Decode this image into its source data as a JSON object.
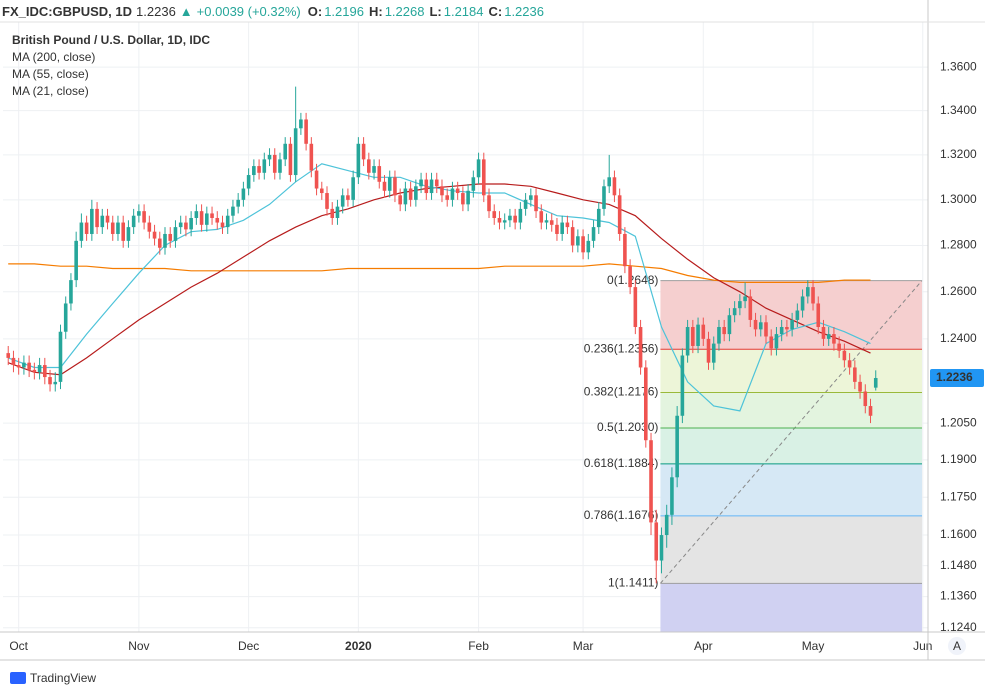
{
  "header": {
    "symbol": "FX_IDC:GBPUSD, 1D",
    "close": 1.2236,
    "change": "+0.0039 (+0.32%)",
    "fields": [
      {
        "key": "O:",
        "value": 1.2196
      },
      {
        "key": "H:",
        "value": 1.2268
      },
      {
        "key": "L:",
        "value": 1.2184
      },
      {
        "key": "C:",
        "value": 1.2236
      }
    ]
  },
  "chart_data": {
    "type": "candlestick",
    "title": "British Pound / U.S. Dollar, 1D, IDC",
    "yscale": "log",
    "grid": true,
    "up_color": "#26a69a",
    "down_color": "#ef5350",
    "ylim": [
      1.1224,
      1.381
    ],
    "xlim": [
      -1,
      176
    ],
    "yticks": [
      {
        "value": 1.36,
        "label": "1.3600"
      },
      {
        "value": 1.34,
        "label": "1.3400"
      },
      {
        "value": 1.32,
        "label": "1.3200"
      },
      {
        "value": 1.3,
        "label": "1.3000"
      },
      {
        "value": 1.28,
        "label": "1.2800"
      },
      {
        "value": 1.26,
        "label": "1.2600"
      },
      {
        "value": 1.24,
        "label": "1.2400"
      },
      {
        "value": 1.205,
        "label": "1.2050"
      },
      {
        "value": 1.19,
        "label": "1.1900"
      },
      {
        "value": 1.175,
        "label": "1.1750"
      },
      {
        "value": 1.16,
        "label": "1.1600"
      },
      {
        "value": 1.148,
        "label": "1.1480"
      },
      {
        "value": 1.136,
        "label": "1.1360"
      },
      {
        "value": 1.124,
        "label": "1.1240"
      }
    ],
    "xticks": [
      {
        "value": 2,
        "label": "Oct"
      },
      {
        "value": 25,
        "label": "Nov"
      },
      {
        "value": 46,
        "label": "Dec"
      },
      {
        "value": 67,
        "label": "2020"
      },
      {
        "value": 90,
        "label": "Feb"
      },
      {
        "value": 110,
        "label": "Mar"
      },
      {
        "value": 133,
        "label": "Apr"
      },
      {
        "value": 154,
        "label": "May"
      },
      {
        "value": 175,
        "label": "Jun"
      }
    ],
    "last_price": 1.2236,
    "last_price_color": "#2196f3",
    "candles": [
      [
        1.234,
        1.237,
        1.229,
        1.232
      ],
      [
        1.232,
        1.235,
        1.226,
        1.229
      ],
      [
        1.229,
        1.232,
        1.225,
        1.228
      ],
      [
        1.228,
        1.233,
        1.225,
        1.23
      ],
      [
        1.23,
        1.233,
        1.224,
        1.227
      ],
      [
        1.227,
        1.23,
        1.223,
        1.226
      ],
      [
        1.226,
        1.232,
        1.223,
        1.229
      ],
      [
        1.229,
        1.232,
        1.221,
        1.224
      ],
      [
        1.224,
        1.227,
        1.218,
        1.221
      ],
      [
        1.221,
        1.226,
        1.218,
        1.222
      ],
      [
        1.222,
        1.246,
        1.219,
        1.243
      ],
      [
        1.243,
        1.258,
        1.24,
        1.255
      ],
      [
        1.255,
        1.268,
        1.252,
        1.265
      ],
      [
        1.265,
        1.286,
        1.262,
        1.282
      ],
      [
        1.282,
        1.294,
        1.279,
        1.29
      ],
      [
        1.29,
        1.293,
        1.282,
        1.285
      ],
      [
        1.285,
        1.3,
        1.282,
        1.296
      ],
      [
        1.296,
        1.299,
        1.285,
        1.288
      ],
      [
        1.288,
        1.296,
        1.285,
        1.293
      ],
      [
        1.293,
        1.296,
        1.287,
        1.29
      ],
      [
        1.29,
        1.293,
        1.282,
        1.285
      ],
      [
        1.285,
        1.293,
        1.282,
        1.29
      ],
      [
        1.29,
        1.293,
        1.279,
        1.282
      ],
      [
        1.282,
        1.291,
        1.279,
        1.288
      ],
      [
        1.288,
        1.296,
        1.285,
        1.293
      ],
      [
        1.293,
        1.298,
        1.29,
        1.295
      ],
      [
        1.295,
        1.298,
        1.287,
        1.29
      ],
      [
        1.29,
        1.293,
        1.283,
        1.286
      ],
      [
        1.286,
        1.289,
        1.28,
        1.283
      ],
      [
        1.283,
        1.286,
        1.276,
        1.279
      ],
      [
        1.279,
        1.288,
        1.276,
        1.285
      ],
      [
        1.285,
        1.288,
        1.279,
        1.282
      ],
      [
        1.282,
        1.291,
        1.279,
        1.288
      ],
      [
        1.288,
        1.293,
        1.285,
        1.29
      ],
      [
        1.29,
        1.293,
        1.284,
        1.287
      ],
      [
        1.287,
        1.295,
        1.284,
        1.292
      ],
      [
        1.292,
        1.298,
        1.289,
        1.295
      ],
      [
        1.295,
        1.298,
        1.286,
        1.289
      ],
      [
        1.289,
        1.297,
        1.286,
        1.294
      ],
      [
        1.294,
        1.297,
        1.289,
        1.292
      ],
      [
        1.292,
        1.295,
        1.287,
        1.29
      ],
      [
        1.29,
        1.293,
        1.285,
        1.288
      ],
      [
        1.288,
        1.296,
        1.285,
        1.293
      ],
      [
        1.293,
        1.3,
        1.29,
        1.297
      ],
      [
        1.297,
        1.303,
        1.294,
        1.3
      ],
      [
        1.3,
        1.308,
        1.297,
        1.305
      ],
      [
        1.305,
        1.314,
        1.302,
        1.311
      ],
      [
        1.311,
        1.318,
        1.308,
        1.315
      ],
      [
        1.315,
        1.318,
        1.309,
        1.312
      ],
      [
        1.312,
        1.321,
        1.309,
        1.318
      ],
      [
        1.318,
        1.323,
        1.315,
        1.32
      ],
      [
        1.32,
        1.323,
        1.309,
        1.312
      ],
      [
        1.312,
        1.321,
        1.309,
        1.318
      ],
      [
        1.318,
        1.328,
        1.315,
        1.325
      ],
      [
        1.325,
        1.328,
        1.308,
        1.311
      ],
      [
        1.311,
        1.351,
        1.308,
        1.332
      ],
      [
        1.332,
        1.339,
        1.329,
        1.336
      ],
      [
        1.336,
        1.339,
        1.322,
        1.325
      ],
      [
        1.325,
        1.328,
        1.31,
        1.313
      ],
      [
        1.313,
        1.316,
        1.302,
        1.305
      ],
      [
        1.305,
        1.308,
        1.3,
        1.303
      ],
      [
        1.303,
        1.306,
        1.293,
        1.296
      ],
      [
        1.296,
        1.299,
        1.289,
        1.292
      ],
      [
        1.292,
        1.3,
        1.289,
        1.297
      ],
      [
        1.297,
        1.305,
        1.294,
        1.302
      ],
      [
        1.302,
        1.305,
        1.297,
        1.3
      ],
      [
        1.3,
        1.313,
        1.297,
        1.31
      ],
      [
        1.31,
        1.328,
        1.307,
        1.325
      ],
      [
        1.325,
        1.328,
        1.315,
        1.318
      ],
      [
        1.318,
        1.321,
        1.309,
        1.312
      ],
      [
        1.312,
        1.318,
        1.309,
        1.315
      ],
      [
        1.315,
        1.318,
        1.305,
        1.308
      ],
      [
        1.308,
        1.311,
        1.301,
        1.304
      ],
      [
        1.304,
        1.313,
        1.301,
        1.31
      ],
      [
        1.31,
        1.313,
        1.299,
        1.302
      ],
      [
        1.302,
        1.305,
        1.295,
        1.298
      ],
      [
        1.298,
        1.308,
        1.295,
        1.305
      ],
      [
        1.305,
        1.308,
        1.297,
        1.3
      ],
      [
        1.3,
        1.309,
        1.297,
        1.306
      ],
      [
        1.306,
        1.312,
        1.303,
        1.309
      ],
      [
        1.309,
        1.312,
        1.3,
        1.303
      ],
      [
        1.303,
        1.312,
        1.3,
        1.309
      ],
      [
        1.309,
        1.312,
        1.303,
        1.306
      ],
      [
        1.306,
        1.309,
        1.299,
        1.302
      ],
      [
        1.302,
        1.305,
        1.297,
        1.3
      ],
      [
        1.3,
        1.308,
        1.297,
        1.305
      ],
      [
        1.305,
        1.308,
        1.3,
        1.303
      ],
      [
        1.303,
        1.306,
        1.295,
        1.298
      ],
      [
        1.298,
        1.307,
        1.295,
        1.304
      ],
      [
        1.304,
        1.313,
        1.301,
        1.31
      ],
      [
        1.31,
        1.321,
        1.307,
        1.318
      ],
      [
        1.318,
        1.321,
        1.299,
        1.302
      ],
      [
        1.302,
        1.305,
        1.292,
        1.295
      ],
      [
        1.295,
        1.298,
        1.289,
        1.292
      ],
      [
        1.292,
        1.295,
        1.287,
        1.29
      ],
      [
        1.29,
        1.294,
        1.287,
        1.291
      ],
      [
        1.291,
        1.296,
        1.288,
        1.293
      ],
      [
        1.293,
        1.296,
        1.287,
        1.29
      ],
      [
        1.29,
        1.299,
        1.287,
        1.296
      ],
      [
        1.296,
        1.303,
        1.293,
        1.3
      ],
      [
        1.3,
        1.305,
        1.297,
        1.302
      ],
      [
        1.302,
        1.305,
        1.292,
        1.295
      ],
      [
        1.295,
        1.298,
        1.287,
        1.29
      ],
      [
        1.29,
        1.294,
        1.287,
        1.291
      ],
      [
        1.291,
        1.294,
        1.286,
        1.289
      ],
      [
        1.289,
        1.292,
        1.282,
        1.285
      ],
      [
        1.285,
        1.293,
        1.282,
        1.29
      ],
      [
        1.29,
        1.293,
        1.285,
        1.288
      ],
      [
        1.288,
        1.291,
        1.277,
        1.28
      ],
      [
        1.28,
        1.287,
        1.277,
        1.284
      ],
      [
        1.284,
        1.287,
        1.274,
        1.277
      ],
      [
        1.277,
        1.285,
        1.274,
        1.282
      ],
      [
        1.282,
        1.291,
        1.279,
        1.288
      ],
      [
        1.288,
        1.299,
        1.285,
        1.296
      ],
      [
        1.296,
        1.309,
        1.293,
        1.306
      ],
      [
        1.306,
        1.32,
        1.303,
        1.31
      ],
      [
        1.31,
        1.313,
        1.299,
        1.302
      ],
      [
        1.302,
        1.305,
        1.282,
        1.285
      ],
      [
        1.285,
        1.288,
        1.268,
        1.271
      ],
      [
        1.271,
        1.274,
        1.259,
        1.262
      ],
      [
        1.262,
        1.265,
        1.242,
        1.245
      ],
      [
        1.245,
        1.248,
        1.225,
        1.228
      ],
      [
        1.228,
        1.231,
        1.195,
        1.198
      ],
      [
        1.198,
        1.201,
        1.16,
        1.165
      ],
      [
        1.165,
        1.17,
        1.1411,
        1.15
      ],
      [
        1.15,
        1.163,
        1.145,
        1.16
      ],
      [
        1.16,
        1.172,
        1.155,
        1.168
      ],
      [
        1.168,
        1.187,
        1.164,
        1.183
      ],
      [
        1.183,
        1.212,
        1.179,
        1.208
      ],
      [
        1.208,
        1.236,
        1.205,
        1.233
      ],
      [
        1.233,
        1.248,
        1.23,
        1.245
      ],
      [
        1.245,
        1.248,
        1.234,
        1.237
      ],
      [
        1.237,
        1.249,
        1.234,
        1.246
      ],
      [
        1.246,
        1.249,
        1.237,
        1.24
      ],
      [
        1.24,
        1.243,
        1.227,
        1.23
      ],
      [
        1.23,
        1.241,
        1.227,
        1.238
      ],
      [
        1.238,
        1.248,
        1.235,
        1.245
      ],
      [
        1.245,
        1.248,
        1.239,
        1.242
      ],
      [
        1.242,
        1.253,
        1.239,
        1.25
      ],
      [
        1.25,
        1.256,
        1.247,
        1.253
      ],
      [
        1.253,
        1.259,
        1.25,
        1.256
      ],
      [
        1.256,
        1.264,
        1.253,
        1.258
      ],
      [
        1.258,
        1.261,
        1.245,
        1.248
      ],
      [
        1.248,
        1.251,
        1.241,
        1.244
      ],
      [
        1.244,
        1.25,
        1.241,
        1.247
      ],
      [
        1.247,
        1.25,
        1.238,
        1.241
      ],
      [
        1.241,
        1.244,
        1.233,
        1.236
      ],
      [
        1.236,
        1.245,
        1.233,
        1.242
      ],
      [
        1.242,
        1.248,
        1.239,
        1.245
      ],
      [
        1.245,
        1.248,
        1.241,
        1.244
      ],
      [
        1.244,
        1.251,
        1.241,
        1.248
      ],
      [
        1.248,
        1.255,
        1.245,
        1.252
      ],
      [
        1.252,
        1.261,
        1.249,
        1.258
      ],
      [
        1.258,
        1.265,
        1.255,
        1.262
      ],
      [
        1.262,
        1.265,
        1.252,
        1.255
      ],
      [
        1.255,
        1.258,
        1.242,
        1.245
      ],
      [
        1.245,
        1.248,
        1.237,
        1.24
      ],
      [
        1.24,
        1.245,
        1.237,
        1.242
      ],
      [
        1.242,
        1.245,
        1.235,
        1.238
      ],
      [
        1.238,
        1.241,
        1.232,
        1.235
      ],
      [
        1.235,
        1.238,
        1.228,
        1.231
      ],
      [
        1.231,
        1.234,
        1.225,
        1.228
      ],
      [
        1.228,
        1.231,
        1.219,
        1.222
      ],
      [
        1.222,
        1.225,
        1.215,
        1.218
      ],
      [
        1.218,
        1.221,
        1.209,
        1.212
      ],
      [
        1.212,
        1.215,
        1.205,
        1.208
      ],
      [
        1.2196,
        1.2268,
        1.2184,
        1.2236
      ]
    ],
    "ma_x": [
      0,
      5,
      10,
      15,
      20,
      25,
      30,
      35,
      40,
      45,
      50,
      55,
      60,
      65,
      70,
      75,
      80,
      85,
      90,
      95,
      100,
      105,
      110,
      115,
      120,
      125,
      130,
      135,
      140,
      145,
      150,
      155,
      160,
      165
    ],
    "moving_averages": [
      {
        "name": "MA (200, close)",
        "color": "#f57c00",
        "values": [
          1.272,
          1.272,
          1.271,
          1.271,
          1.27,
          1.27,
          1.27,
          1.269,
          1.269,
          1.269,
          1.269,
          1.269,
          1.269,
          1.27,
          1.27,
          1.27,
          1.27,
          1.27,
          1.27,
          1.271,
          1.271,
          1.271,
          1.271,
          1.272,
          1.271,
          1.27,
          1.267,
          1.265,
          1.264,
          1.264,
          1.264,
          1.264,
          1.265,
          1.265
        ]
      },
      {
        "name": "MA (55, close)",
        "color": "#b71c1c",
        "values": [
          1.23,
          1.226,
          1.225,
          1.232,
          1.24,
          1.248,
          1.255,
          1.262,
          1.268,
          1.275,
          1.282,
          1.288,
          1.293,
          1.296,
          1.3,
          1.303,
          1.305,
          1.306,
          1.307,
          1.307,
          1.306,
          1.303,
          1.3,
          1.298,
          1.293,
          1.283,
          1.274,
          1.266,
          1.26,
          1.253,
          1.248,
          1.243,
          1.239,
          1.234
        ]
      },
      {
        "name": "MA (21, close)",
        "color": "#4dc3d9",
        "values": [
          1.232,
          1.228,
          1.228,
          1.242,
          1.255,
          1.268,
          1.28,
          1.286,
          1.287,
          1.291,
          1.298,
          1.308,
          1.316,
          1.313,
          1.31,
          1.31,
          1.306,
          1.304,
          1.303,
          1.303,
          1.298,
          1.293,
          1.292,
          1.29,
          1.284,
          1.245,
          1.222,
          1.212,
          1.21,
          1.238,
          1.244,
          1.247,
          1.243,
          1.238
        ]
      }
    ],
    "fib": {
      "x_start": 124.8,
      "levels": [
        {
          "label": "0(1.2648)",
          "level": 0,
          "price": 1.2648,
          "color": "#9e9e9e",
          "fill": "#f5cfcf"
        },
        {
          "label": "0.236(1.2356)",
          "level": 0.236,
          "price": 1.2356,
          "color": "#e53935",
          "fill": "#edf5d8"
        },
        {
          "label": "0.382(1.2176)",
          "level": 0.382,
          "price": 1.2176,
          "color": "#9ab93a",
          "fill": "#e3f4df"
        },
        {
          "label": "0.5(1.2030)",
          "level": 0.5,
          "price": 1.203,
          "color": "#4caf50",
          "fill": "#d9f1e5"
        },
        {
          "label": "0.618(1.1884)",
          "level": 0.618,
          "price": 1.1884,
          "color": "#089981",
          "fill": "#d6e8f5"
        },
        {
          "label": "0.786(1.1676)",
          "level": 0.786,
          "price": 1.1676,
          "color": "#64b5f6",
          "fill": "#e4e4e4"
        },
        {
          "label": "1(1.1411)",
          "level": 1,
          "price": 1.1411,
          "color": "#9e9e9e",
          "fill": "#d0d1f2"
        }
      ]
    }
  }
}
